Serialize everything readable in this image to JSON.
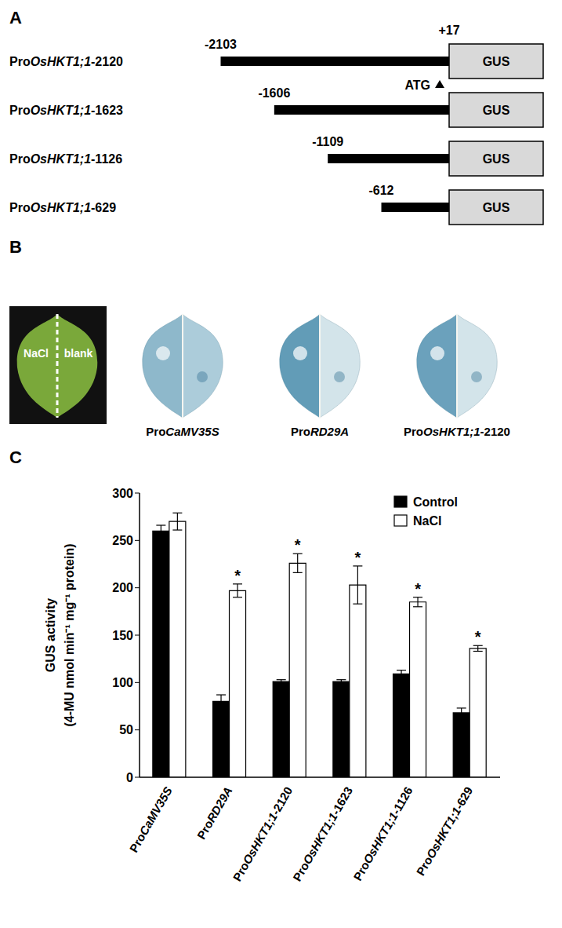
{
  "panel_a": {
    "panel_label": "A",
    "reporter": "GUS",
    "start_codon": "ATG",
    "end": {
      "value": 17,
      "label": "+17"
    },
    "constructs": [
      {
        "label": "ProOsHKT1;1-2120",
        "start": -2103
      },
      {
        "label": "ProOsHKT1;1-1623",
        "start": -1606
      },
      {
        "label": "ProOsHKT1;1-1126",
        "start": -1109
      },
      {
        "label": "ProOsHKT1;1-629",
        "start": -612
      }
    ]
  },
  "panel_b": {
    "panel_label": "B",
    "split_labels": [
      "NaCl",
      "blank"
    ],
    "leaves": [
      "ProCaMV35S",
      "ProRD29A",
      "ProOsHKT1;1-2120"
    ]
  },
  "chart_data": {
    "type": "bar",
    "panel_label": "C",
    "y_label": [
      "GUS activity",
      "(4-MU nmol min⁻¹ mg⁻¹ protein)"
    ],
    "categories": [
      "ProCaMV35S",
      "ProRD29A",
      "ProOsHKT1;1-2120",
      "ProOsHKT1;1-1623",
      "ProOsHKT1;1-1126",
      "ProOsHKT1;1-629"
    ],
    "series": [
      {
        "name": "Control",
        "color": "#000000",
        "values": [
          260,
          80,
          101,
          101,
          109,
          68
        ],
        "errors": [
          6,
          7,
          2,
          2,
          4,
          5
        ]
      },
      {
        "name": "NaCl",
        "color": "#ffffff",
        "values": [
          270,
          197,
          226,
          203,
          185,
          136
        ],
        "errors": [
          9,
          7,
          10,
          20,
          5,
          3
        ],
        "annotations": [
          null,
          "*",
          "*",
          "*",
          "*",
          "*"
        ]
      }
    ],
    "ylim": [
      0,
      300
    ],
    "yticks": [
      0,
      50,
      100,
      150,
      200,
      250,
      300
    ],
    "grid": false,
    "legend": "top-right"
  }
}
